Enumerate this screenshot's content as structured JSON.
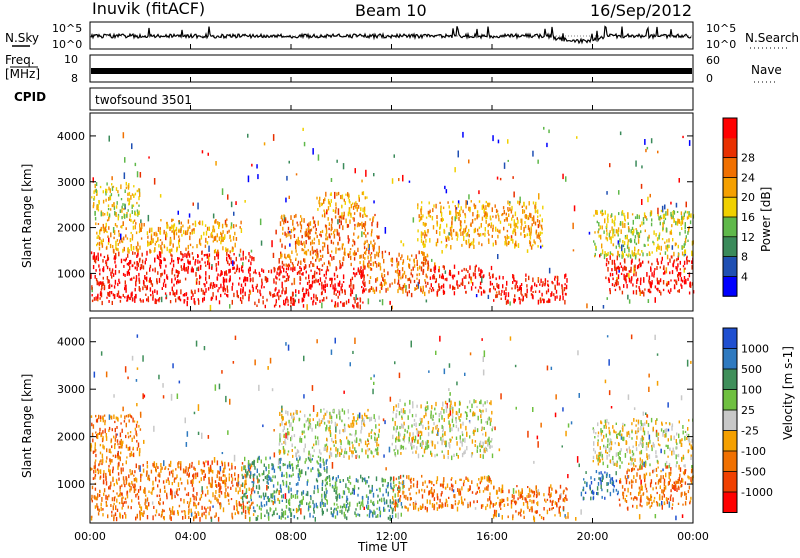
{
  "header": {
    "station": "Inuvik (fitACF)",
    "beam": "Beam 10",
    "date": "16/Sep/2012"
  },
  "noise_panel": {
    "left_label": "N.Sky",
    "right_label": "N.Search",
    "left_ticks": [
      "10^5",
      "10^0"
    ],
    "right_ticks": [
      "10^5",
      "10^0"
    ]
  },
  "freq_panel": {
    "left_label": "Freq.",
    "left_unit": "[MHz]",
    "right_label": "Nave",
    "left_ticks": [
      "10",
      "8"
    ],
    "right_ticks": [
      "60",
      "0"
    ]
  },
  "cpid_panel": {
    "label": "CPID",
    "value": "twofsound 3501"
  },
  "chart_data": [
    {
      "type": "heatmap",
      "title": "",
      "ylabel": "Slant Range [km]",
      "xlabel": "Time UT",
      "x_ticks": [
        "00:00",
        "04:00",
        "08:00",
        "12:00",
        "16:00",
        "20:00",
        "00:00"
      ],
      "y_ticks": [
        "1000",
        "2000",
        "3000",
        "4000"
      ],
      "x_range_hours": [
        0,
        24
      ],
      "y_range_km": [
        180,
        4500
      ],
      "colorbar": {
        "label": "Power [dB]",
        "ticks": [
          "4",
          "8",
          "12",
          "16",
          "20",
          "24",
          "28"
        ],
        "colors": [
          "#0000ff",
          "#1f4fb3",
          "#3a8a5a",
          "#5fb84a",
          "#f0d000",
          "#f5a000",
          "#f07000",
          "#e83000",
          "#ff0000"
        ]
      },
      "bands": [
        {
          "t0": 0.0,
          "t1": 6.5,
          "r0": 400,
          "r1": 1500,
          "level": 8
        },
        {
          "t0": 0.2,
          "t1": 6.0,
          "r0": 1500,
          "r1": 2200,
          "level": 5
        },
        {
          "t0": 0.0,
          "t1": 2.0,
          "r0": 2200,
          "r1": 3000,
          "level": 4
        },
        {
          "t0": 6.5,
          "t1": 11.0,
          "r0": 300,
          "r1": 1200,
          "level": 8
        },
        {
          "t0": 7.5,
          "t1": 11.5,
          "r0": 1200,
          "r1": 2300,
          "level": 6
        },
        {
          "t0": 9.0,
          "t1": 11.0,
          "r0": 2300,
          "r1": 2800,
          "level": 5
        },
        {
          "t0": 11.0,
          "t1": 13.5,
          "r0": 600,
          "r1": 1500,
          "level": 6
        },
        {
          "t0": 13.5,
          "t1": 16.0,
          "r0": 600,
          "r1": 1200,
          "level": 8
        },
        {
          "t0": 13.0,
          "t1": 18.0,
          "r0": 1600,
          "r1": 2600,
          "level": 5
        },
        {
          "t0": 16.0,
          "t1": 19.0,
          "r0": 400,
          "r1": 1000,
          "level": 8
        },
        {
          "t0": 20.5,
          "t1": 24.0,
          "r0": 600,
          "r1": 1400,
          "level": 8
        },
        {
          "t0": 20.0,
          "t1": 24.0,
          "r0": 1400,
          "r1": 2400,
          "level": 4
        }
      ]
    },
    {
      "type": "heatmap",
      "title": "",
      "ylabel": "Slant Range [km]",
      "xlabel": "Time UT",
      "x_ticks": [
        "00:00",
        "04:00",
        "08:00",
        "12:00",
        "16:00",
        "20:00",
        "00:00"
      ],
      "y_ticks": [
        "1000",
        "2000",
        "3000",
        "4000"
      ],
      "x_range_hours": [
        0,
        24
      ],
      "y_range_km": [
        180,
        4500
      ],
      "colorbar": {
        "label": "Velocity [m s-1]",
        "ticks": [
          "1000",
          "500",
          "100",
          "25",
          "-25",
          "-100",
          "-500",
          "-1000"
        ],
        "colors": [
          "#1f4fd0",
          "#2f7ac0",
          "#3f8f5a",
          "#6fc040",
          "#c8c8c8",
          "#f5a000",
          "#f07000",
          "#f04000",
          "#ff0000"
        ]
      },
      "bands": [
        {
          "t0": 0.0,
          "t1": 6.5,
          "r0": 300,
          "r1": 1500,
          "level": 6
        },
        {
          "t0": 0.0,
          "t1": 2.0,
          "r0": 1500,
          "r1": 2500,
          "level": 6
        },
        {
          "t0": 6.0,
          "t1": 9.5,
          "r0": 300,
          "r1": 1600,
          "level": 2
        },
        {
          "t0": 7.5,
          "t1": 11.5,
          "r0": 1600,
          "r1": 2600,
          "level": 4
        },
        {
          "t0": 9.5,
          "t1": 12.5,
          "r0": 300,
          "r1": 1200,
          "level": 2
        },
        {
          "t0": 12.0,
          "t1": 16.0,
          "r0": 1600,
          "r1": 2800,
          "level": 4
        },
        {
          "t0": 12.0,
          "t1": 16.0,
          "r0": 500,
          "r1": 1200,
          "level": 6
        },
        {
          "t0": 16.0,
          "t1": 19.0,
          "r0": 300,
          "r1": 1000,
          "level": 6
        },
        {
          "t0": 19.5,
          "t1": 21.0,
          "r0": 700,
          "r1": 1300,
          "level": 1
        },
        {
          "t0": 21.0,
          "t1": 24.0,
          "r0": 500,
          "r1": 1400,
          "level": 6
        },
        {
          "t0": 20.0,
          "t1": 24.0,
          "r0": 1400,
          "r1": 2400,
          "level": 4
        }
      ]
    }
  ]
}
